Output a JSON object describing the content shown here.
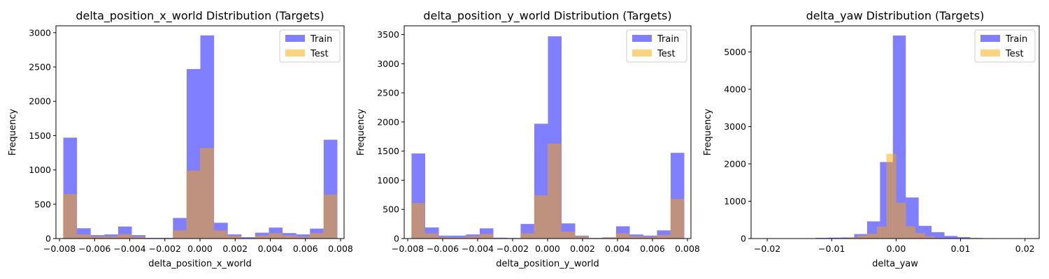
{
  "chart_data": [
    {
      "type": "histogram",
      "title": "delta_position_x_world Distribution (Targets)",
      "xlabel": "delta_position_x_world",
      "ylabel": "Frequency",
      "xlim": [
        -0.0082,
        0.0082
      ],
      "ylim": [
        0,
        3100
      ],
      "xticks": [
        -0.008,
        -0.006,
        -0.004,
        -0.002,
        0.0,
        0.002,
        0.004,
        0.006,
        0.008
      ],
      "xtick_labels": [
        "−0.008",
        "−0.006",
        "−0.004",
        "−0.002",
        "0.000",
        "0.002",
        "0.004",
        "0.006",
        "0.008"
      ],
      "yticks": [
        0,
        500,
        1000,
        1500,
        2000,
        2500,
        3000
      ],
      "legend": "top-right",
      "series": [
        {
          "name": "Train",
          "color": "#0000ff",
          "alpha": 0.5,
          "bins": [
            -0.00778,
            -0.007,
            -0.00622,
            -0.00544,
            -0.00466,
            -0.00388,
            -0.0031,
            -0.00232,
            -0.00154,
            -0.00076,
            2e-05,
            0.0008,
            0.00158,
            0.00236,
            0.00314,
            0.00392,
            0.0047,
            0.00548,
            0.00626,
            0.00704,
            0.00782
          ],
          "counts": [
            1470,
            150,
            50,
            60,
            175,
            50,
            10,
            10,
            300,
            2470,
            2960,
            230,
            60,
            20,
            85,
            160,
            80,
            60,
            145,
            1440
          ]
        },
        {
          "name": "Test",
          "color": "#ffa500",
          "alpha": 0.5,
          "bins": [
            -0.0078,
            -0.00702,
            -0.00624,
            -0.00546,
            -0.00468,
            -0.0039,
            -0.00312,
            -0.00234,
            -0.00156,
            -0.00078,
            0.0,
            0.00078,
            0.00156,
            0.00234,
            0.00312,
            0.0039,
            0.00468,
            0.00546,
            0.00624,
            0.00702,
            0.0078
          ],
          "counts": [
            650,
            60,
            30,
            30,
            65,
            30,
            5,
            5,
            120,
            990,
            1320,
            120,
            40,
            10,
            45,
            80,
            45,
            30,
            80,
            640
          ]
        }
      ]
    },
    {
      "type": "histogram",
      "title": "delta_position_y_world Distribution (Targets)",
      "xlabel": "delta_position_y_world",
      "ylabel": "Frequency",
      "xlim": [
        -0.0082,
        0.0082
      ],
      "ylim": [
        0,
        3650
      ],
      "xticks": [
        -0.008,
        -0.006,
        -0.004,
        -0.002,
        0.0,
        0.002,
        0.004,
        0.006,
        0.008
      ],
      "xtick_labels": [
        "−0.008",
        "−0.006",
        "−0.004",
        "−0.002",
        "0.000",
        "0.002",
        "0.004",
        "0.006",
        "0.008"
      ],
      "yticks": [
        0,
        500,
        1000,
        1500,
        2000,
        2500,
        3000,
        3500
      ],
      "legend": "top-right",
      "series": [
        {
          "name": "Train",
          "color": "#0000ff",
          "alpha": 0.5,
          "bins": [
            -0.00778,
            -0.007,
            -0.00622,
            -0.00544,
            -0.00466,
            -0.00388,
            -0.0031,
            -0.00232,
            -0.00154,
            -0.00076,
            2e-05,
            0.0008,
            0.00158,
            0.00236,
            0.00314,
            0.00392,
            0.0047,
            0.00548,
            0.00626,
            0.00704,
            0.00782
          ],
          "counts": [
            1460,
            190,
            50,
            50,
            70,
            175,
            15,
            10,
            250,
            1970,
            3470,
            260,
            50,
            10,
            20,
            210,
            70,
            50,
            140,
            1470
          ]
        },
        {
          "name": "Test",
          "color": "#ffa500",
          "alpha": 0.5,
          "bins": [
            -0.0078,
            -0.00702,
            -0.00624,
            -0.00546,
            -0.00468,
            -0.0039,
            -0.00312,
            -0.00234,
            -0.00156,
            -0.00078,
            0.0,
            0.00078,
            0.00156,
            0.00234,
            0.00312,
            0.0039,
            0.00468,
            0.00546,
            0.00624,
            0.00702,
            0.0078
          ],
          "counts": [
            610,
            90,
            30,
            25,
            40,
            80,
            10,
            5,
            90,
            740,
            1630,
            120,
            40,
            10,
            20,
            90,
            40,
            30,
            60,
            680
          ]
        }
      ]
    },
    {
      "type": "histogram",
      "title": "delta_yaw Distribution (Targets)",
      "xlabel": "delta_yaw",
      "ylabel": "Frequency",
      "xlim": [
        -0.0225,
        0.0222
      ],
      "ylim": [
        0,
        5700
      ],
      "xticks": [
        -0.02,
        -0.01,
        0.0,
        0.01,
        0.02
      ],
      "xtick_labels": [
        "−0.02",
        "−0.01",
        "0.00",
        "0.01",
        "0.02"
      ],
      "yticks": [
        0,
        1000,
        2000,
        3000,
        4000,
        5000
      ],
      "legend": "top-right",
      "series": [
        {
          "name": "Train",
          "color": "#0000ff",
          "alpha": 0.5,
          "bins": [
            -0.0205,
            -0.0185,
            -0.0165,
            -0.0145,
            -0.0125,
            -0.0105,
            -0.0085,
            -0.0065,
            -0.0045,
            -0.0025,
            -0.0005,
            0.0015,
            0.0035,
            0.0055,
            0.0075,
            0.0095,
            0.0115,
            0.0135,
            0.0155,
            0.0175,
            0.02
          ],
          "counts": [
            5,
            5,
            5,
            10,
            20,
            25,
            30,
            120,
            460,
            2050,
            5440,
            1100,
            340,
            170,
            70,
            40,
            15,
            10,
            5,
            5
          ]
        },
        {
          "name": "Test",
          "color": "#ffa500",
          "alpha": 0.5,
          "bins": [
            -0.01,
            -0.009,
            -0.0075,
            -0.006,
            -0.0045,
            -0.003,
            -0.0015,
            0.0,
            0.0015,
            0.003,
            0.0045,
            0.006,
            0.0075,
            0.009,
            0.0105,
            0.012
          ],
          "counts": [
            5,
            10,
            30,
            80,
            130,
            320,
            2270,
            960,
            330,
            150,
            60,
            20,
            10,
            5,
            5
          ]
        }
      ]
    }
  ]
}
